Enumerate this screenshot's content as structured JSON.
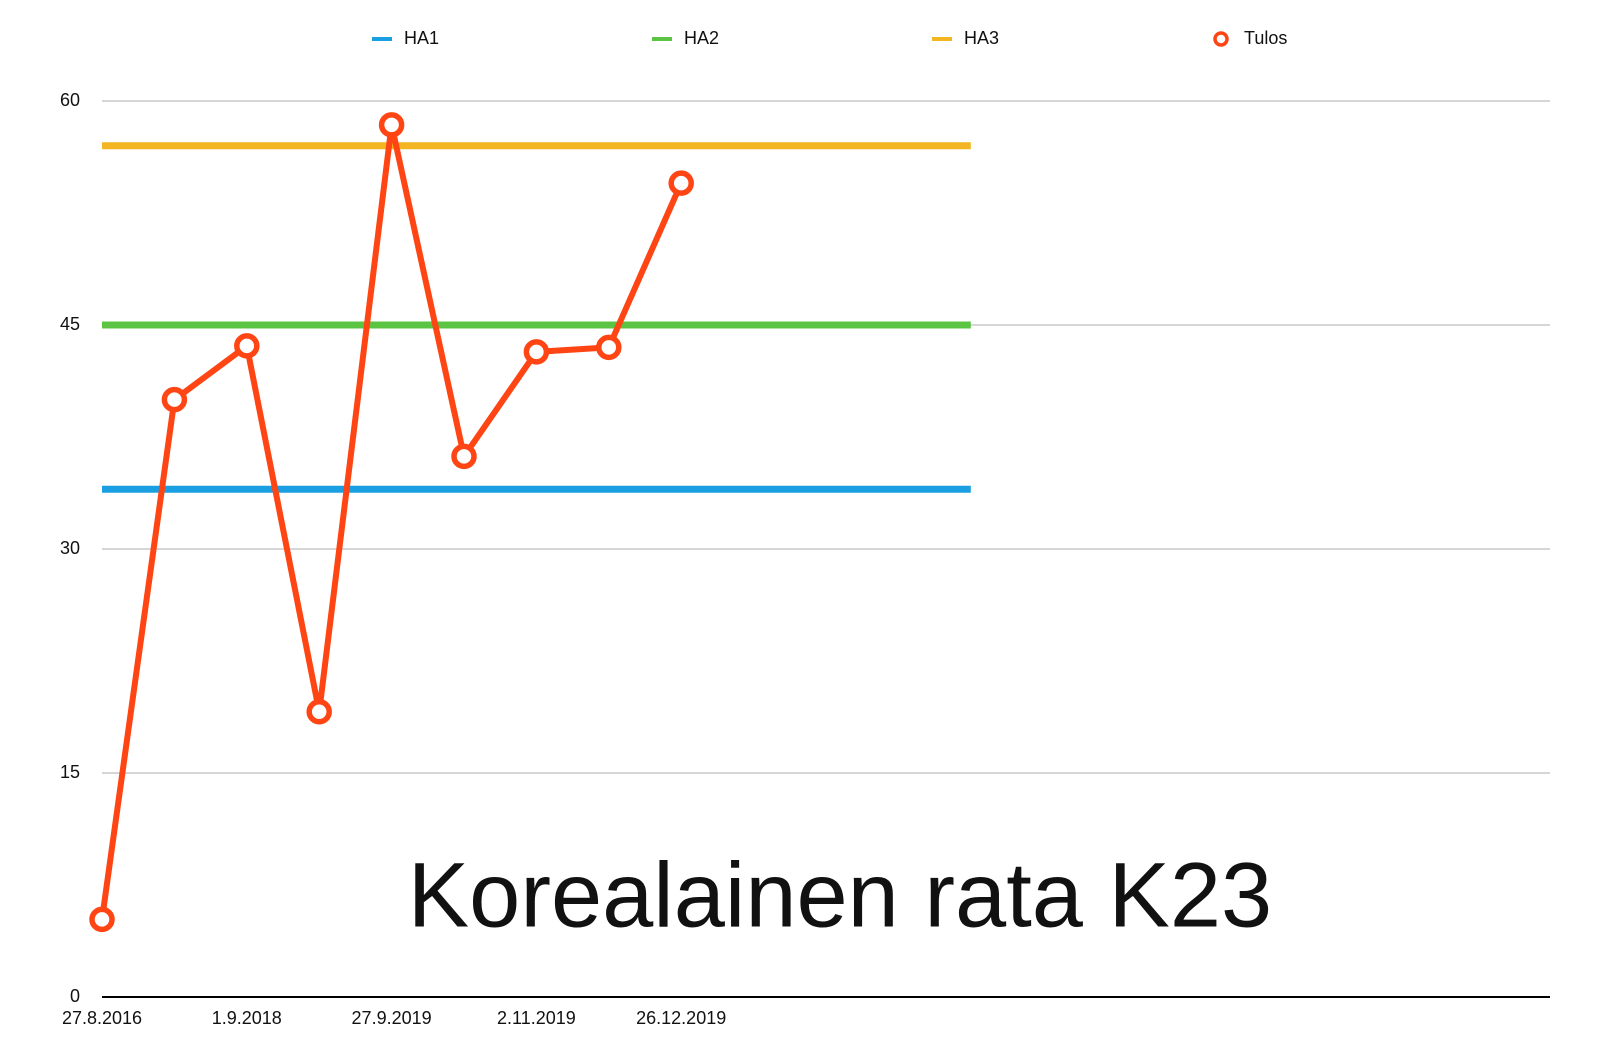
{
  "chart_data": {
    "type": "line",
    "title": "Korealainen rata  K23",
    "categories": [
      "27.8.2016",
      null,
      "1.9.2018",
      null,
      "27.9.2019",
      null,
      "2.11.2019",
      null,
      "26.12.2019",
      null,
      null,
      null,
      null,
      null,
      null,
      null,
      null,
      null,
      null,
      null,
      null
    ],
    "series": [
      {
        "name": "HA1",
        "color": "#1a9fe3",
        "marker": false,
        "values": [
          34,
          34,
          34,
          34,
          34,
          34,
          34,
          34,
          34,
          34,
          34,
          34,
          34,
          null,
          null,
          null,
          null,
          null,
          null,
          null,
          null
        ]
      },
      {
        "name": "HA2",
        "color": "#5cc443",
        "marker": false,
        "values": [
          45,
          45,
          45,
          45,
          45,
          45,
          45,
          45,
          45,
          45,
          45,
          45,
          45,
          null,
          null,
          null,
          null,
          null,
          null,
          null,
          null
        ]
      },
      {
        "name": "HA3",
        "color": "#f3b622",
        "marker": false,
        "values": [
          57,
          57,
          57,
          57,
          57,
          57,
          57,
          57,
          57,
          57,
          57,
          57,
          57,
          null,
          null,
          null,
          null,
          null,
          null,
          null,
          null
        ]
      },
      {
        "name": "Tulos",
        "color": "#ff4513",
        "marker": true,
        "values": [
          5.2,
          40,
          43.6,
          19.1,
          58.4,
          36.2,
          43.2,
          43.5,
          54.5,
          null,
          null,
          null,
          null,
          null,
          null,
          null,
          null,
          null,
          null,
          null,
          null
        ]
      }
    ],
    "ylim": [
      0,
      60
    ],
    "yticks": [
      0,
      15,
      30,
      45,
      60
    ],
    "grid": true,
    "legend": "top"
  }
}
